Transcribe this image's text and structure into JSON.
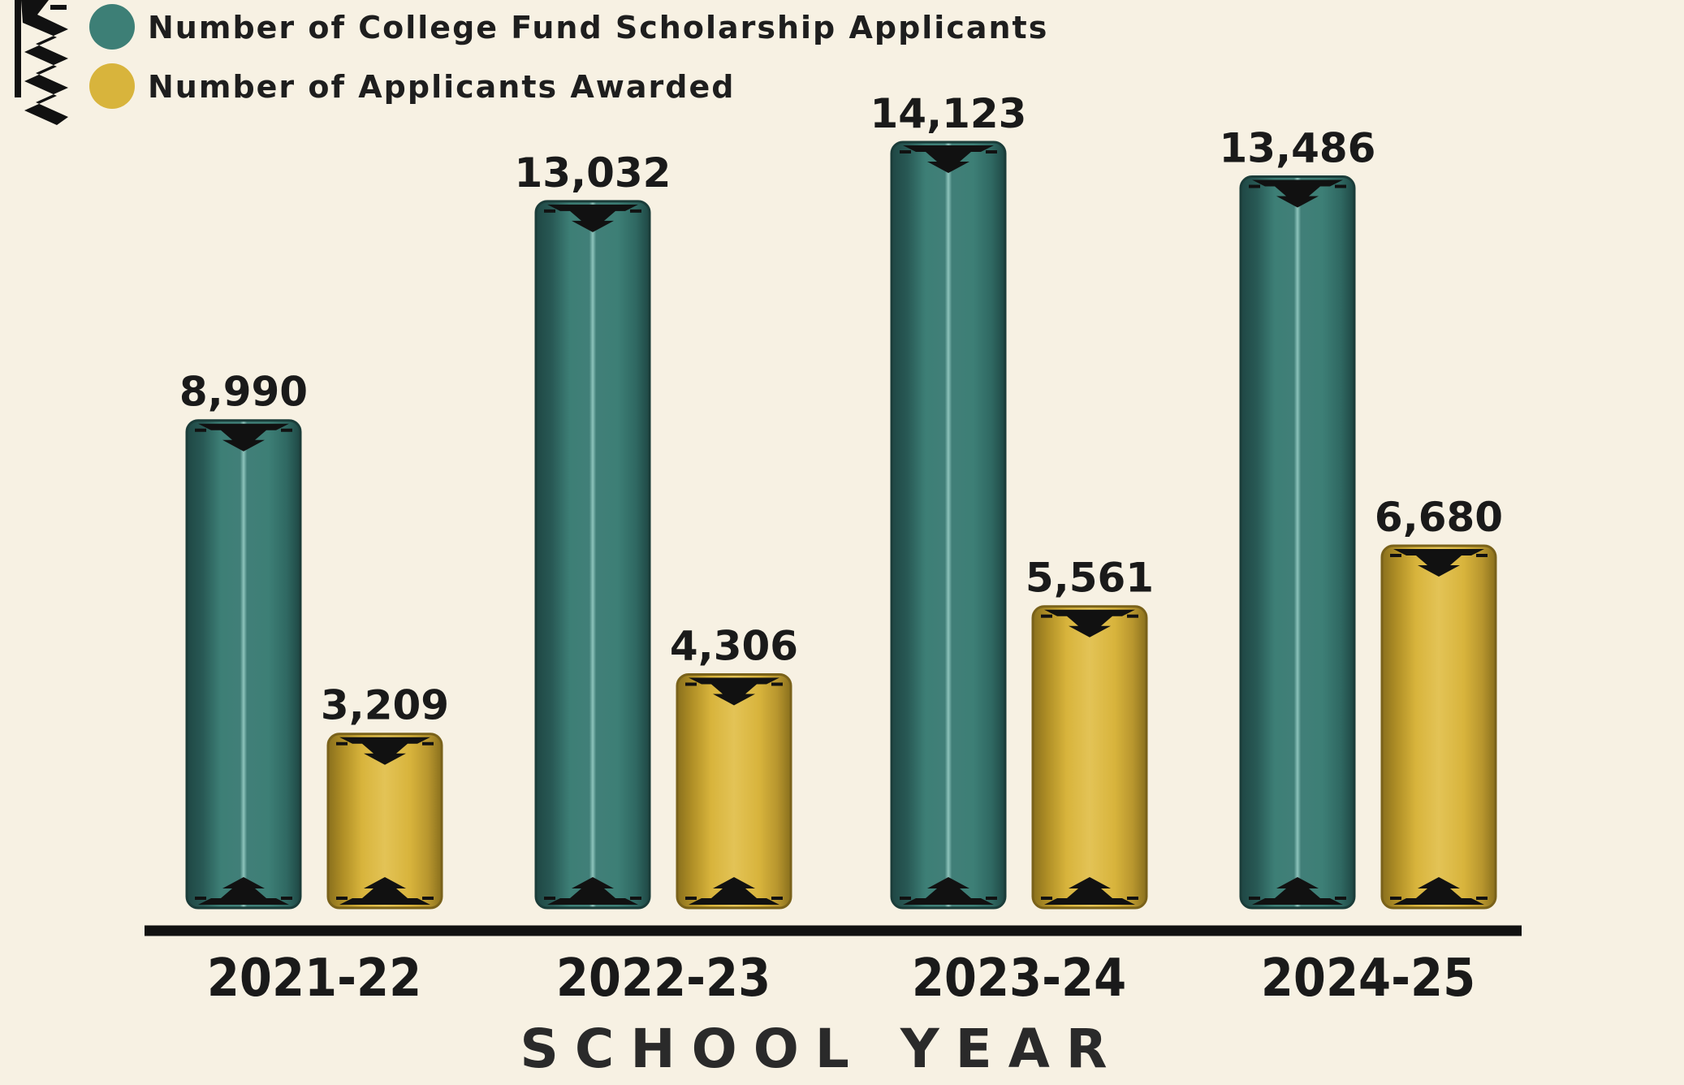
{
  "chart_data": {
    "type": "bar",
    "title": "",
    "xlabel": "SCHOOL YEAR",
    "ylabel": "",
    "categories": [
      "2021-22",
      "2022-23",
      "2023-24",
      "2024-25"
    ],
    "series": [
      {
        "name": "Number of College Fund Scholarship Applicants",
        "color": "#3d7f76",
        "values": [
          8990,
          13032,
          14123,
          13486
        ]
      },
      {
        "name": "Number of Applicants Awarded",
        "color": "#d8b43c",
        "values": [
          3209,
          4306,
          5561,
          6680
        ]
      }
    ],
    "value_labels": [
      [
        "8,990",
        "13,032",
        "14,123",
        "13,486"
      ],
      [
        "3,209",
        "4,306",
        "5,561",
        "6,680"
      ]
    ],
    "ylim": [
      0,
      15000
    ],
    "grid": false,
    "legend_position": "top-left"
  }
}
